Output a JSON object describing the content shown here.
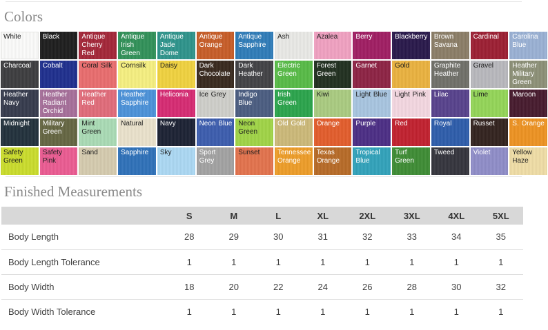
{
  "headings": {
    "colors": "Colors",
    "measurements": "Finished Measurements"
  },
  "colors": [
    {
      "name": "White",
      "bg": "#FBFBFA",
      "fg": "#1e1e1e",
      "border": true
    },
    {
      "name": "Black",
      "bg": "#1E1E1E",
      "fg": "#ffffff"
    },
    {
      "name": "Antique Cherry Red",
      "bg": "#A32638",
      "fg": "#ffffff"
    },
    {
      "name": "Antique Irish Green",
      "bg": "#319159",
      "fg": "#ffffff"
    },
    {
      "name": "Antique Jade Dome",
      "bg": "#2E948B",
      "fg": "#ffffff"
    },
    {
      "name": "Antique Orange",
      "bg": "#C75D28",
      "fg": "#ffffff"
    },
    {
      "name": "Antique Sapphire",
      "bg": "#2F7CB8",
      "fg": "#ffffff"
    },
    {
      "name": "Ash",
      "bg": "#E9E9E6",
      "fg": "#1e1e1e"
    },
    {
      "name": "Azalea",
      "bg": "#F0A1C1",
      "fg": "#1e1e1e"
    },
    {
      "name": "Berry",
      "bg": "#A01E63",
      "fg": "#ffffff"
    },
    {
      "name": "Blackberry",
      "bg": "#29194B",
      "fg": "#ffffff"
    },
    {
      "name": "Brown Savana",
      "bg": "#8B7E67",
      "fg": "#ffffff"
    },
    {
      "name": "Cardinal",
      "bg": "#9C1F33",
      "fg": "#ffffff"
    },
    {
      "name": "Carolina Blue",
      "bg": "#9AB1D4",
      "fg": "#ffffff"
    },
    {
      "name": "Charcoal",
      "bg": "#3D3D3F",
      "fg": "#ffffff"
    },
    {
      "name": "Cobalt",
      "bg": "#1F2F8E",
      "fg": "#ffffff"
    },
    {
      "name": "Coral Silk",
      "bg": "#E96D6E",
      "fg": "#1e1e1e"
    },
    {
      "name": "Cornsilk",
      "bg": "#F6EF81",
      "fg": "#1e1e1e"
    },
    {
      "name": "Daisy",
      "bg": "#F0D23F",
      "fg": "#1e1e1e"
    },
    {
      "name": "Dark Chocolate",
      "bg": "#38291E",
      "fg": "#ffffff"
    },
    {
      "name": "Dark Heather",
      "bg": "#424246",
      "fg": "#ffffff"
    },
    {
      "name": "Electric Green",
      "bg": "#57BB47",
      "fg": "#ffffff"
    },
    {
      "name": "Forest Green",
      "bg": "#213020",
      "fg": "#ffffff"
    },
    {
      "name": "Garnet",
      "bg": "#8D2344",
      "fg": "#ffffff"
    },
    {
      "name": "Gold",
      "bg": "#EAB23F",
      "fg": "#1e1e1e"
    },
    {
      "name": "Graphite Heather",
      "bg": "#707069",
      "fg": "#ffffff"
    },
    {
      "name": "Gravel",
      "bg": "#B8B8BD",
      "fg": "#1e1e1e"
    },
    {
      "name": "Heather Military Green",
      "bg": "#8C9077",
      "fg": "#ffffff"
    },
    {
      "name": "Heather Navy",
      "bg": "#363B4D",
      "fg": "#ffffff"
    },
    {
      "name": "Heather Radiant Orchid",
      "bg": "#A66F9A",
      "fg": "#ffffff"
    },
    {
      "name": "Heather Red",
      "bg": "#E16C7A",
      "fg": "#ffffff"
    },
    {
      "name": "Heather Sapphire",
      "bg": "#4C92D9",
      "fg": "#ffffff"
    },
    {
      "name": "Heliconia",
      "bg": "#D62B73",
      "fg": "#ffffff"
    },
    {
      "name": "Ice Grey",
      "bg": "#CFCFCA",
      "fg": "#1e1e1e"
    },
    {
      "name": "Indigo Blue",
      "bg": "#4B5D81",
      "fg": "#ffffff"
    },
    {
      "name": "Irish Green",
      "bg": "#2BA44C",
      "fg": "#ffffff"
    },
    {
      "name": "Kiwi",
      "bg": "#AACB81",
      "fg": "#1e1e1e"
    },
    {
      "name": "Light Blue",
      "bg": "#A8C5E0",
      "fg": "#1e1e1e"
    },
    {
      "name": "Light Pink",
      "bg": "#F4D7E1",
      "fg": "#1e1e1e"
    },
    {
      "name": "Lilac",
      "bg": "#57428C",
      "fg": "#ffffff"
    },
    {
      "name": "Lime",
      "bg": "#94D558",
      "fg": "#1e1e1e"
    },
    {
      "name": "Maroon",
      "bg": "#471B2E",
      "fg": "#ffffff"
    },
    {
      "name": "Midnight",
      "bg": "#22313C",
      "fg": "#ffffff"
    },
    {
      "name": "Military Green",
      "bg": "#656643",
      "fg": "#ffffff"
    },
    {
      "name": "Mint Green",
      "bg": "#AADBB5",
      "fg": "#1e1e1e"
    },
    {
      "name": "Natural",
      "bg": "#EAE2CC",
      "fg": "#1e1e1e"
    },
    {
      "name": "Navy",
      "bg": "#1C2234",
      "fg": "#ffffff"
    },
    {
      "name": "Neon Blue",
      "bg": "#3C5DAE",
      "fg": "#ffffff"
    },
    {
      "name": "Neon Green",
      "bg": "#A0D447",
      "fg": "#1e1e1e"
    },
    {
      "name": "Old Gold",
      "bg": "#CCB979",
      "fg": "#ffffff"
    },
    {
      "name": "Orange",
      "bg": "#E35D2C",
      "fg": "#ffffff"
    },
    {
      "name": "Purple",
      "bg": "#4C2E85",
      "fg": "#ffffff"
    },
    {
      "name": "Red",
      "bg": "#C1212F",
      "fg": "#ffffff"
    },
    {
      "name": "Royal",
      "bg": "#2E5DAB",
      "fg": "#ffffff"
    },
    {
      "name": "Russet",
      "bg": "#33231F",
      "fg": "#ffffff"
    },
    {
      "name": "S. Orange",
      "bg": "#ED9322",
      "fg": "#ffffff"
    },
    {
      "name": "Safety Green",
      "bg": "#CADC2C",
      "fg": "#1e1e1e"
    },
    {
      "name": "Safety Pink",
      "bg": "#EB5C92",
      "fg": "#1e1e1e"
    },
    {
      "name": "Sand",
      "bg": "#D5CBAF",
      "fg": "#1e1e1e"
    },
    {
      "name": "Sapphire",
      "bg": "#2F71B9",
      "fg": "#ffffff"
    },
    {
      "name": "Sky",
      "bg": "#ACD8F3",
      "fg": "#1e1e1e"
    },
    {
      "name": "Sport Grey",
      "bg": "#A2A2A2",
      "fg": "#ffffff"
    },
    {
      "name": "Sunset",
      "bg": "#E3734D",
      "fg": "#1e1e1e"
    },
    {
      "name": "Tennessee Orange",
      "bg": "#ED9D29",
      "fg": "#ffffff"
    },
    {
      "name": "Texas Orange",
      "bg": "#B76B27",
      "fg": "#ffffff"
    },
    {
      "name": "Tropical Blue",
      "bg": "#32A2BA",
      "fg": "#ffffff"
    },
    {
      "name": "Turf Green",
      "bg": "#3E8C35",
      "fg": "#ffffff"
    },
    {
      "name": "Tweed",
      "bg": "#35353D",
      "fg": "#ffffff"
    },
    {
      "name": "Violet",
      "bg": "#8F8DC8",
      "fg": "#ffffff"
    },
    {
      "name": "Yellow Haze",
      "bg": "#EFDDA6",
      "fg": "#1e1e1e"
    }
  ],
  "measurements": {
    "columns": [
      "S",
      "M",
      "L",
      "XL",
      "2XL",
      "3XL",
      "4XL",
      "5XL"
    ],
    "rows": [
      {
        "label": "Body Length",
        "values": [
          "28",
          "29",
          "30",
          "31",
          "32",
          "33",
          "34",
          "35"
        ]
      },
      {
        "label": "Body Length Tolerance",
        "values": [
          "1",
          "1",
          "1",
          "1",
          "1",
          "1",
          "1",
          "1"
        ]
      },
      {
        "label": "Body Width",
        "values": [
          "18",
          "20",
          "22",
          "24",
          "26",
          "28",
          "30",
          "32"
        ]
      },
      {
        "label": "Body Width Tolerance",
        "values": [
          "1",
          "1",
          "1",
          "1",
          "1",
          "1",
          "1",
          "1"
        ]
      }
    ]
  }
}
